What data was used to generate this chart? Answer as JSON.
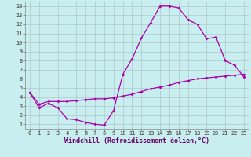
{
  "xlabel": "Windchill (Refroidissement éolien,°C)",
  "background_color": "#c8eef0",
  "line_color": "#aa00aa",
  "xlim": [
    -0.5,
    23.5
  ],
  "ylim": [
    0.5,
    14.5
  ],
  "xticks": [
    0,
    1,
    2,
    3,
    4,
    5,
    6,
    7,
    8,
    9,
    10,
    11,
    12,
    13,
    14,
    15,
    16,
    17,
    18,
    19,
    20,
    21,
    22,
    23
  ],
  "yticks": [
    1,
    2,
    3,
    4,
    5,
    6,
    7,
    8,
    9,
    10,
    11,
    12,
    13,
    14
  ],
  "line1_x": [
    0,
    1,
    2,
    3,
    4,
    5,
    6,
    7,
    8,
    9,
    10,
    11,
    12,
    13,
    14,
    15,
    16,
    17,
    18,
    19,
    20,
    21,
    22,
    23
  ],
  "line1_y": [
    4.5,
    2.8,
    3.3,
    2.8,
    1.6,
    1.5,
    1.2,
    1.0,
    0.9,
    2.5,
    6.5,
    8.2,
    10.5,
    12.2,
    14.0,
    14.0,
    13.8,
    12.5,
    12.0,
    10.4,
    10.6,
    8.0,
    7.5,
    6.2
  ],
  "line2_x": [
    0,
    1,
    2,
    3,
    4,
    5,
    6,
    7,
    8,
    9,
    10,
    11,
    12,
    13,
    14,
    15,
    16,
    17,
    18,
    19,
    20,
    21,
    22,
    23
  ],
  "line2_y": [
    4.5,
    3.2,
    3.5,
    3.5,
    3.5,
    3.6,
    3.7,
    3.8,
    3.8,
    3.9,
    4.1,
    4.3,
    4.6,
    4.9,
    5.1,
    5.3,
    5.6,
    5.8,
    6.0,
    6.1,
    6.2,
    6.3,
    6.4,
    6.5
  ],
  "grid_color": "#b0c8ca",
  "tick_fontsize": 5.0,
  "xlabel_fontsize": 6.0
}
